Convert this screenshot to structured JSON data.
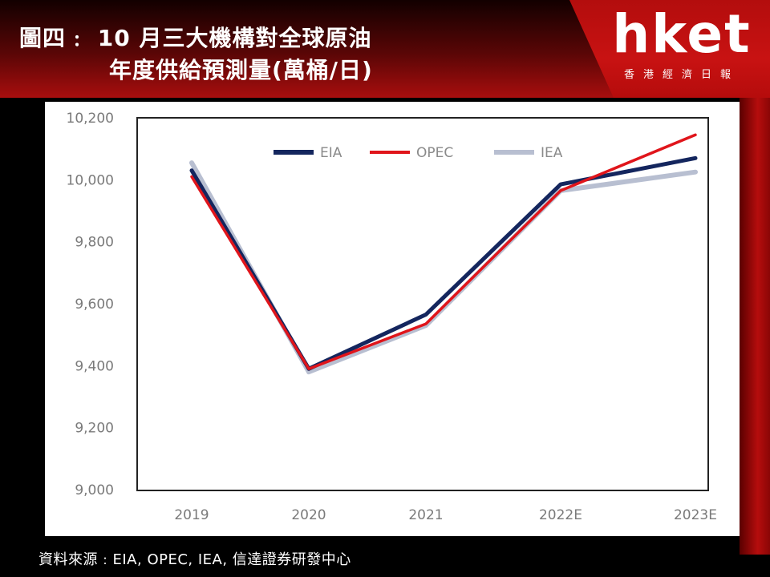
{
  "header": {
    "title_line1": "圖四﹕ 10 月三大機構對全球原油",
    "title_line2": "年度供給預測量(萬桶/日)"
  },
  "brand": {
    "wordmark": "hket",
    "subtitle": "香港經濟日報"
  },
  "source": "資料來源﹕EIA, OPEC, IEA, 信達證券研發中心",
  "colors": {
    "EIA": "#14265e",
    "OPEC": "#e0151b",
    "IEA": "#b8bfd1"
  },
  "chart_data": {
    "type": "line",
    "categories": [
      "2019",
      "2020",
      "2021",
      "2022E",
      "2023E"
    ],
    "series": [
      {
        "name": "EIA",
        "values": [
          10030,
          9390,
          9565,
          9985,
          10070
        ]
      },
      {
        "name": "OPEC",
        "values": [
          10010,
          9390,
          9535,
          9965,
          10145
        ]
      },
      {
        "name": "IEA",
        "values": [
          10055,
          9380,
          9530,
          9965,
          10025
        ]
      }
    ],
    "ylim": [
      9000,
      10200
    ],
    "yticks": [
      "9,000",
      "9,200",
      "9,400",
      "9,600",
      "9,800",
      "10,000",
      "10,200"
    ],
    "legend_position": "top-right",
    "grid": false
  }
}
